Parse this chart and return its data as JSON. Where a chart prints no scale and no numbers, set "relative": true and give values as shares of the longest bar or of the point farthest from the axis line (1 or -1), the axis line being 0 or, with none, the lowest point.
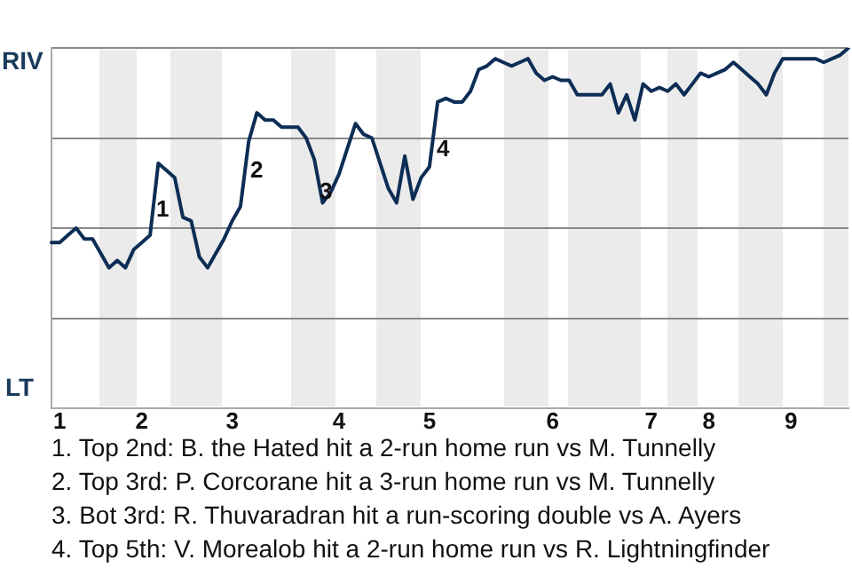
{
  "chart_data": {
    "type": "line",
    "categories": [
      null,
      "1",
      null,
      null,
      null,
      null,
      null,
      null,
      null,
      null,
      null,
      "2",
      null,
      null,
      null,
      null,
      null,
      null,
      null,
      null,
      null,
      null,
      "3",
      null,
      null,
      null,
      null,
      null,
      null,
      null,
      null,
      null,
      null,
      null,
      null,
      "4",
      null,
      null,
      null,
      null,
      null,
      null,
      null,
      null,
      null,
      null,
      "5",
      null,
      null,
      null,
      null,
      null,
      null,
      null,
      null,
      null,
      null,
      null,
      null,
      null,
      null,
      "6",
      null,
      null,
      null,
      null,
      null,
      null,
      null,
      null,
      null,
      null,
      null,
      "7",
      null,
      null,
      null,
      null,
      null,
      null,
      "8",
      null,
      null,
      null,
      null,
      null,
      null,
      null,
      null,
      null,
      "9",
      null,
      null,
      null,
      null,
      null,
      null,
      null
    ],
    "series": [
      {
        "color": "#0d2d55",
        "values": [
          0.46,
          0.46,
          0.48,
          0.5,
          0.47,
          0.47,
          0.43,
          0.39,
          0.41,
          0.39,
          0.44,
          0.46,
          0.48,
          0.68,
          0.66,
          0.64,
          0.53,
          0.52,
          0.42,
          0.39,
          0.43,
          0.47,
          0.52,
          0.56,
          0.74,
          0.82,
          0.8,
          0.8,
          0.78,
          0.78,
          0.78,
          0.75,
          0.69,
          0.57,
          0.6,
          0.65,
          0.72,
          0.79,
          0.76,
          0.75,
          0.68,
          0.61,
          0.57,
          0.7,
          0.58,
          0.64,
          0.67,
          0.85,
          0.86,
          0.85,
          0.85,
          0.88,
          0.94,
          0.95,
          0.97,
          0.96,
          0.95,
          0.96,
          0.97,
          0.93,
          0.91,
          0.92,
          0.91,
          0.91,
          0.87,
          0.87,
          0.87,
          0.87,
          0.9,
          0.82,
          0.87,
          0.8,
          0.9,
          0.88,
          0.89,
          0.88,
          0.9,
          0.87,
          0.9,
          0.93,
          0.92,
          0.93,
          0.94,
          0.96,
          0.94,
          0.92,
          0.9,
          0.87,
          0.93,
          0.97,
          0.97,
          0.97,
          0.97,
          0.97,
          0.96,
          0.97,
          0.98,
          1
        ]
      }
    ],
    "relative": true,
    "grid": "y",
    "legend": false,
    "marker": "none",
    "line_style": "solid",
    "annotations": [
      "RIV",
      "LT",
      "1",
      "2",
      "3",
      "4",
      "1. Top 2nd: B. the Hated hit a 2-run home run vs M. Tunnelly",
      "2. Top 3rd: P. Corcorane hit a 3-run home run vs M. Tunnelly",
      "3. Bot 3rd: R. Thuvaradran hit a run-scoring double vs A. Ayers",
      "4. Top 5th: V. Morealob hit a 2-run home run vs R. Lightningfinder"
    ]
  }
}
